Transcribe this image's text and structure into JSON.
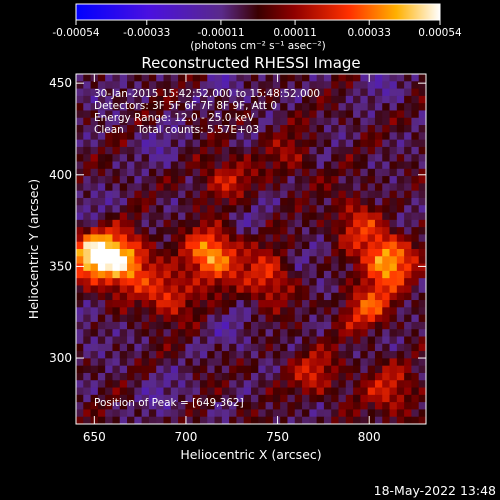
{
  "chart_data": {
    "type": "heatmap",
    "title": "Reconstructed RHESSI Image",
    "xlabel": "Heliocentric X (arcsec)",
    "ylabel": "Heliocentric Y (arcsec)",
    "x_ticks": [
      650,
      700,
      750,
      800
    ],
    "y_ticks": [
      300,
      350,
      400,
      450
    ],
    "xlim": [
      640,
      831
    ],
    "ylim": [
      264,
      455
    ],
    "colorbar": {
      "ticks": [
        "-0.00054",
        "-0.00033",
        "-0.00011",
        "0.00011",
        "0.00033",
        "0.00054"
      ],
      "range": [
        -0.00054,
        0.00054
      ],
      "unit_label": "(photons cm⁻² s⁻¹ asec⁻²)"
    },
    "info_lines": [
      "30-Jan-2015 15:42:52.000 to 15:48:52.000",
      "Detectors: 3F 5F 6F 7F 8F 9F, Att 0",
      "Energy Range: 12.0 - 25.0 keV",
      "Clean    Total counts: 5.57E+03"
    ],
    "peak_label": "Position of Peak = [649,362]",
    "peak_position": [
      649,
      362
    ],
    "bright_regions": [
      {
        "x": 651,
        "y": 356,
        "value": 0.00054
      },
      {
        "x": 668,
        "y": 352,
        "value": 0.0004
      },
      {
        "x": 714,
        "y": 356,
        "value": 0.00045
      },
      {
        "x": 690,
        "y": 336,
        "value": 0.0003
      },
      {
        "x": 722,
        "y": 396,
        "value": 0.00022
      },
      {
        "x": 745,
        "y": 344,
        "value": 0.00028
      },
      {
        "x": 810,
        "y": 353,
        "value": 0.00045
      },
      {
        "x": 800,
        "y": 326,
        "value": 0.0003
      },
      {
        "x": 795,
        "y": 375,
        "value": 0.00025
      },
      {
        "x": 770,
        "y": 289,
        "value": 0.00025
      },
      {
        "x": 812,
        "y": 282,
        "value": 0.00022
      },
      {
        "x": 760,
        "y": 412,
        "value": 0.00018
      }
    ],
    "grid": false
  },
  "footer": {
    "timestamp": "18-May-2022 13:48"
  }
}
